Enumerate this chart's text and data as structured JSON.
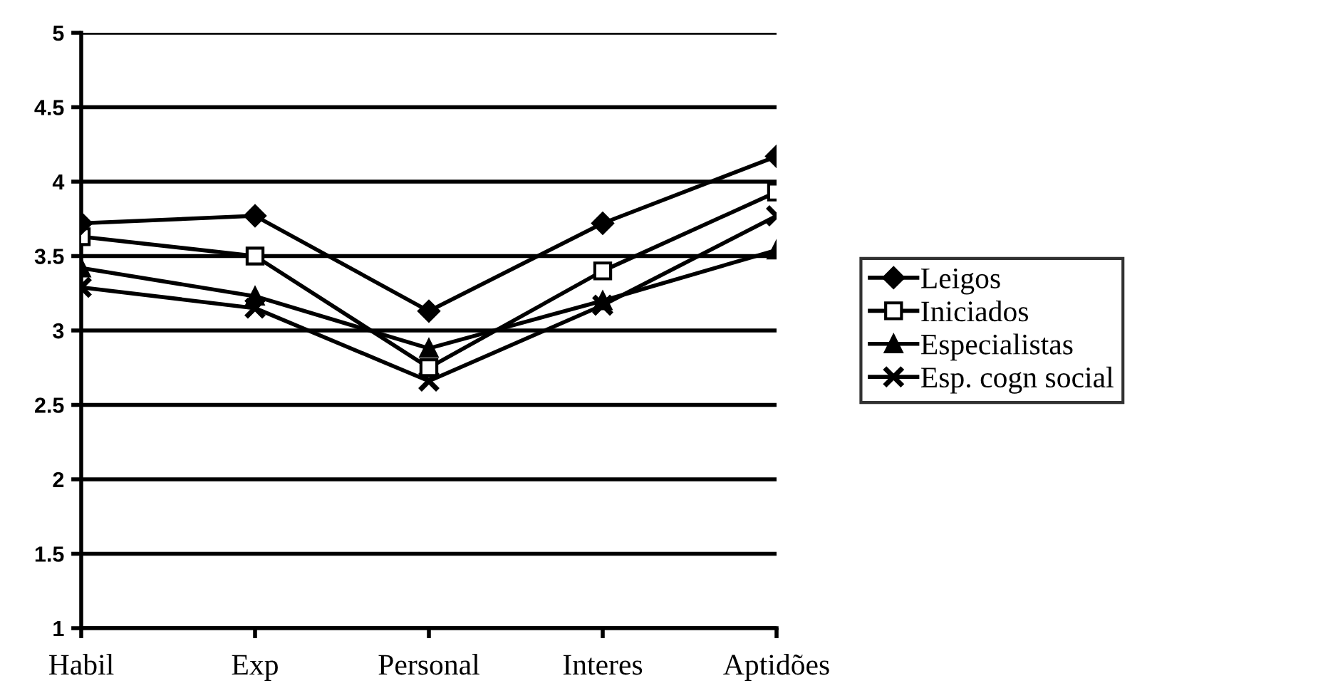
{
  "chart_data": {
    "type": "line",
    "categories": [
      "Habil",
      "Exp",
      "Personal",
      "Interes",
      "Aptidões"
    ],
    "series": [
      {
        "name": "Leigos",
        "color": "#000000",
        "marker": "diamond",
        "values": [
          3.72,
          3.77,
          3.13,
          3.72,
          4.17
        ]
      },
      {
        "name": "Iniciados",
        "color": "#000000",
        "marker": "square",
        "values": [
          3.63,
          3.5,
          2.75,
          3.4,
          3.93
        ]
      },
      {
        "name": "Especialistas",
        "color": "#000000",
        "marker": "triangle",
        "values": [
          3.42,
          3.23,
          2.88,
          3.2,
          3.54
        ]
      },
      {
        "name": "Esp. cogn social",
        "color": "#000000",
        "marker": "cross",
        "values": [
          3.29,
          3.15,
          2.66,
          3.17,
          3.77
        ]
      }
    ],
    "ylim": [
      1,
      5
    ],
    "yticks": [
      1,
      1.5,
      2,
      2.5,
      3,
      3.5,
      4,
      4.5,
      5
    ],
    "grid": "y",
    "legend": "right",
    "line_style": "solid"
  }
}
